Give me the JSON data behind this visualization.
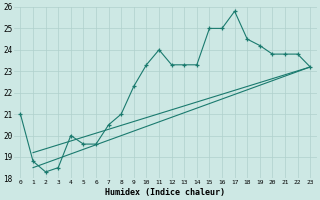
{
  "xlabel": "Humidex (Indice chaleur)",
  "xlim": [
    -0.5,
    23.5
  ],
  "ylim": [
    18,
    26
  ],
  "background_color": "#cde8e4",
  "grid_color": "#b0d0cc",
  "line_color": "#1a7a6e",
  "series1_x": [
    0,
    1,
    2,
    3,
    4,
    5,
    6,
    7,
    8,
    9,
    10,
    11,
    12,
    13,
    14,
    15,
    16,
    17,
    18,
    19,
    20,
    21,
    22,
    23
  ],
  "series1_y": [
    21.0,
    18.8,
    18.3,
    18.5,
    20.0,
    19.6,
    19.6,
    20.5,
    21.0,
    22.3,
    23.3,
    24.0,
    23.3,
    23.3,
    23.3,
    25.0,
    25.0,
    25.8,
    24.5,
    24.2,
    23.8,
    23.8,
    23.8,
    23.2
  ],
  "series2_x": [
    1,
    23
  ],
  "series2_y": [
    18.5,
    23.2
  ],
  "series3_x": [
    1,
    23
  ],
  "series3_y": [
    19.2,
    23.2
  ],
  "xtick_labels": [
    "0",
    "1",
    "2",
    "3",
    "4",
    "5",
    "6",
    "7",
    "8",
    "9",
    "10",
    "11",
    "12",
    "13",
    "14",
    "15",
    "16",
    "17",
    "18",
    "19",
    "20",
    "21",
    "22",
    "23"
  ],
  "ytick_labels": [
    "18",
    "19",
    "20",
    "21",
    "22",
    "23",
    "24",
    "25",
    "26"
  ]
}
